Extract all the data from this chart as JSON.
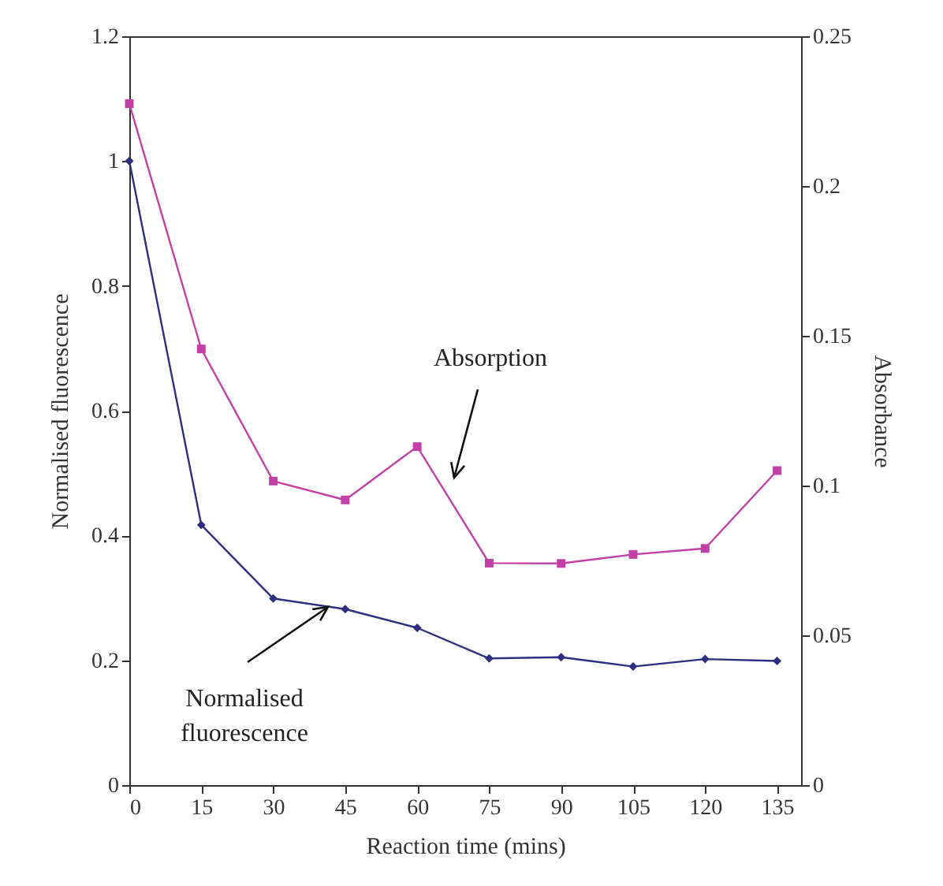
{
  "chart_data": {
    "type": "line",
    "xlabel": "Reaction time (mins)",
    "ylabel": "Normalised fluorescence",
    "y2label": "Absorbance",
    "x": [
      0,
      15,
      30,
      45,
      60,
      75,
      90,
      105,
      120,
      135
    ],
    "series": [
      {
        "name": "Normalised fluorescence",
        "color": "#2e2e80",
        "marker": "diamond",
        "values": [
          1.0,
          0.417,
          0.299,
          0.282,
          0.252,
          0.203,
          0.205,
          0.19,
          0.202,
          0.199
        ]
      },
      {
        "name": "Absorption",
        "color": "#c23fa6",
        "marker": "square",
        "axis": "y2",
        "values": [
          0.2275,
          0.1456,
          0.1015,
          0.0952,
          0.113,
          0.0741,
          0.074,
          0.077,
          0.079,
          0.105
        ]
      }
    ],
    "xlim": [
      0,
      140
    ],
    "xticks": [
      0,
      15,
      30,
      45,
      60,
      75,
      90,
      105,
      120,
      135
    ],
    "ylim": [
      0,
      1.2
    ],
    "yticks": [
      0,
      0.2,
      0.4,
      0.6,
      0.8,
      1,
      1.2
    ],
    "y2lim": [
      0,
      0.25
    ],
    "y2ticks": [
      0,
      0.05,
      0.1,
      0.15,
      0.2,
      0.25
    ],
    "grid": false,
    "legend": false,
    "line_style": "solid"
  }
}
